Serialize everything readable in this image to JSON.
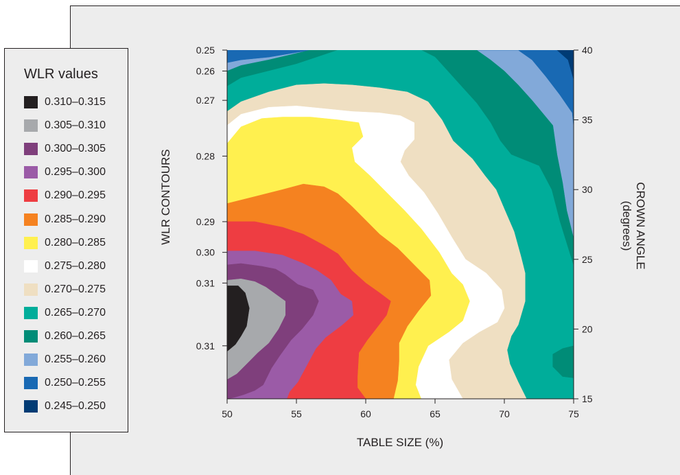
{
  "legend": {
    "title": "WLR values",
    "items": [
      {
        "label": "0.310–0.315",
        "color": "#231f20"
      },
      {
        "label": "0.305–0.310",
        "color": "#a7a9ac"
      },
      {
        "label": "0.300–0.305",
        "color": "#7f3f7c"
      },
      {
        "label": "0.295–0.300",
        "color": "#9b5ba7"
      },
      {
        "label": "0.290–0.295",
        "color": "#ee3d42"
      },
      {
        "label": "0.285–0.290",
        "color": "#f58220"
      },
      {
        "label": "0.280–0.285",
        "color": "#fff04f"
      },
      {
        "label": "0.275–0.280",
        "color": "#ffffff"
      },
      {
        "label": "0.270–0.275",
        "color": "#efdfc2"
      },
      {
        "label": "0.265–0.270",
        "color": "#00ad9a"
      },
      {
        "label": "0.260–0.265",
        "color": "#008c77"
      },
      {
        "label": "0.255–0.260",
        "color": "#82a9d9"
      },
      {
        "label": "0.250–0.255",
        "color": "#1969b3"
      },
      {
        "label": "0.245–0.250",
        "color": "#003b74"
      }
    ]
  },
  "chart_data": {
    "type": "heatmap",
    "subtype": "filled-contour",
    "xlabel": "TABLE SIZE (%)",
    "ylabel_left": "WLR  CONTOURS",
    "ylabel_right_line1": "CROWN ANGLE",
    "ylabel_right_line2": "(degrees)",
    "xlim": [
      50,
      75
    ],
    "ylim": [
      15,
      40
    ],
    "x_ticks": [
      50,
      55,
      60,
      65,
      70,
      75
    ],
    "x_tick_labels": [
      "50",
      "55",
      "60",
      "65",
      "70",
      "75"
    ],
    "y_right_ticks": [
      15,
      20,
      25,
      30,
      35,
      40
    ],
    "y_right_tick_labels": [
      "15",
      "20",
      "25",
      "30",
      "35",
      "40"
    ],
    "left_contour_labels": [
      {
        "label": "0.25",
        "crown_angle": 40
      },
      {
        "label": "0.26",
        "crown_angle": 38.5
      },
      {
        "label": "0.27",
        "crown_angle": 36.4
      },
      {
        "label": "0.28",
        "crown_angle": 32.4
      },
      {
        "label": "0.29",
        "crown_angle": 27.7
      },
      {
        "label": "0.30",
        "crown_angle": 25.5
      },
      {
        "label": "0.31",
        "crown_angle": 23.3
      },
      {
        "label": "0.31",
        "crown_angle": 18.8
      }
    ],
    "regions": [
      {
        "level": "0.255–0.260",
        "points": [
          [
            50,
            40
          ],
          [
            75,
            40
          ],
          [
            75,
            15
          ],
          [
            50,
            15
          ]
        ]
      },
      {
        "level": "0.250–0.255",
        "points": [
          [
            54,
            40
          ],
          [
            75,
            40
          ],
          [
            75,
            34.5
          ],
          [
            74.9,
            35.5
          ],
          [
            74,
            36.8
          ],
          [
            73,
            38.1
          ],
          [
            72,
            39.3
          ],
          [
            71,
            40
          ]
        ]
      },
      {
        "level": "0.245–0.250",
        "points": [
          [
            73.8,
            40
          ],
          [
            75,
            40
          ],
          [
            75,
            37.9
          ],
          [
            74.6,
            39.3
          ]
        ]
      },
      {
        "level": "0.250–0.255",
        "points": [
          [
            50,
            40
          ],
          [
            56,
            40
          ],
          [
            53,
            39.5
          ],
          [
            51,
            39.3
          ],
          [
            50,
            39.1
          ]
        ]
      },
      {
        "level": "0.260–0.265",
        "points": [
          [
            50,
            38.5
          ],
          [
            51,
            38.9
          ],
          [
            53,
            39.3
          ],
          [
            56,
            40
          ],
          [
            68,
            40
          ],
          [
            69,
            39.3
          ],
          [
            70,
            38.5
          ],
          [
            71,
            37.5
          ],
          [
            72,
            36.4
          ],
          [
            73.5,
            34.6
          ],
          [
            73.8,
            32.5
          ],
          [
            74.2,
            30.5
          ],
          [
            74.5,
            28.5
          ],
          [
            75,
            26.5
          ],
          [
            75,
            15
          ],
          [
            50,
            15
          ]
        ]
      },
      {
        "level": "0.265–0.270",
        "points": [
          [
            50,
            37.4
          ],
          [
            51,
            38
          ],
          [
            53,
            38.5
          ],
          [
            55,
            39
          ],
          [
            58,
            40
          ],
          [
            64,
            40
          ],
          [
            65,
            39.5
          ],
          [
            66,
            38.4
          ],
          [
            67,
            37.3
          ],
          [
            68,
            36.2
          ],
          [
            69,
            34.8
          ],
          [
            69.7,
            33.5
          ],
          [
            70.5,
            32.5
          ],
          [
            72.5,
            31.7
          ],
          [
            73.4,
            30
          ],
          [
            74,
            27.7
          ],
          [
            75,
            24.5
          ],
          [
            75,
            15
          ],
          [
            50,
            15
          ]
        ]
      },
      {
        "level": "0.260–0.265",
        "points": [
          [
            73.5,
            18.2
          ],
          [
            74.2,
            18.6
          ],
          [
            75,
            18.8
          ],
          [
            75,
            16.5
          ],
          [
            74.2,
            16.6
          ],
          [
            73.5,
            17.3
          ]
        ]
      },
      {
        "level": "0.270–0.275",
        "points": [
          [
            50,
            35.6
          ],
          [
            51,
            36.3
          ],
          [
            53,
            37
          ],
          [
            55,
            37.5
          ],
          [
            57,
            37.6
          ],
          [
            59,
            37.5
          ],
          [
            61,
            37.3
          ],
          [
            63,
            37
          ],
          [
            64.5,
            36.3
          ],
          [
            65.5,
            35
          ],
          [
            66.3,
            33.5
          ],
          [
            67.7,
            32.2
          ],
          [
            68.6,
            31
          ],
          [
            69.4,
            30
          ],
          [
            70,
            28.6
          ],
          [
            70.7,
            27
          ],
          [
            71.2,
            25.2
          ],
          [
            71.5,
            24
          ],
          [
            71.5,
            22
          ],
          [
            71,
            20.3
          ],
          [
            70.5,
            19.5
          ],
          [
            70.2,
            18.5
          ],
          [
            70.4,
            17.5
          ],
          [
            71,
            16.2
          ],
          [
            71.6,
            15
          ],
          [
            50,
            15
          ]
        ]
      },
      {
        "level": "0.275–0.280",
        "points": [
          [
            50,
            34.6
          ],
          [
            51,
            35.4
          ],
          [
            53,
            35.9
          ],
          [
            55,
            36
          ],
          [
            57,
            35.8
          ],
          [
            59,
            35.6
          ],
          [
            61,
            35.5
          ],
          [
            62.5,
            35.3
          ],
          [
            63.5,
            34.8
          ],
          [
            63.5,
            33.6
          ],
          [
            62.8,
            32.8
          ],
          [
            62.5,
            32
          ],
          [
            63.1,
            31
          ],
          [
            64.2,
            29.8
          ],
          [
            65.2,
            28.3
          ],
          [
            66.2,
            26.6
          ],
          [
            67.2,
            25
          ],
          [
            68.7,
            24
          ],
          [
            69.8,
            22.8
          ],
          [
            70,
            21.5
          ],
          [
            69.5,
            20.5
          ],
          [
            68.2,
            19.8
          ],
          [
            67,
            19
          ],
          [
            66,
            17.8
          ],
          [
            66.2,
            16.4
          ],
          [
            67,
            15
          ],
          [
            50,
            15
          ]
        ]
      },
      {
        "level": "0.280–0.285",
        "points": [
          [
            50,
            33.3
          ],
          [
            51,
            34.5
          ],
          [
            52.5,
            35.1
          ],
          [
            54,
            35.2
          ],
          [
            56,
            35.2
          ],
          [
            58,
            35
          ],
          [
            59.5,
            34.8
          ],
          [
            59.8,
            33.8
          ],
          [
            59,
            33
          ],
          [
            59.2,
            32
          ],
          [
            60.3,
            31
          ],
          [
            61.5,
            29.8
          ],
          [
            62.8,
            28.5
          ],
          [
            64,
            27.2
          ],
          [
            65.3,
            25.5
          ],
          [
            66.2,
            24
          ],
          [
            67,
            23.2
          ],
          [
            67.5,
            22
          ],
          [
            67,
            20.6
          ],
          [
            66,
            19.8
          ],
          [
            64.5,
            18.8
          ],
          [
            63.8,
            17.3
          ],
          [
            63.6,
            16
          ],
          [
            64,
            15
          ],
          [
            50,
            15
          ]
        ]
      },
      {
        "level": "0.285–0.290",
        "points": [
          [
            50,
            29
          ],
          [
            52,
            29.5
          ],
          [
            54,
            30
          ],
          [
            55.5,
            30.4
          ],
          [
            57,
            30.2
          ],
          [
            58,
            29.7
          ],
          [
            59,
            28.8
          ],
          [
            60,
            27.8
          ],
          [
            61,
            26.8
          ],
          [
            62.3,
            25.8
          ],
          [
            63.6,
            24.5
          ],
          [
            64.6,
            23.5
          ],
          [
            64.7,
            22.4
          ],
          [
            63.8,
            21.3
          ],
          [
            63,
            20.2
          ],
          [
            62.4,
            19
          ],
          [
            62.4,
            17.7
          ],
          [
            62.3,
            16.3
          ],
          [
            62,
            15
          ],
          [
            50,
            15
          ]
        ]
      },
      {
        "level": "0.290–0.295",
        "points": [
          [
            50,
            27.7
          ],
          [
            52,
            27.7
          ],
          [
            54,
            27.3
          ],
          [
            55.5,
            26.8
          ],
          [
            57,
            26
          ],
          [
            58,
            25.4
          ],
          [
            59,
            24.2
          ],
          [
            60,
            23.3
          ],
          [
            61,
            22.6
          ],
          [
            61.8,
            22
          ],
          [
            61.5,
            21
          ],
          [
            60.8,
            20.1
          ],
          [
            60.1,
            19.2
          ],
          [
            59.5,
            18.3
          ],
          [
            59.4,
            16.6
          ],
          [
            59.4,
            15.8
          ],
          [
            60,
            15
          ],
          [
            50,
            15
          ]
        ]
      },
      {
        "level": "0.295–0.300",
        "points": [
          [
            50,
            25.6
          ],
          [
            52,
            25.6
          ],
          [
            54,
            25.3
          ],
          [
            55.5,
            24.7
          ],
          [
            56.5,
            24.2
          ],
          [
            57.5,
            23.5
          ],
          [
            58.2,
            22.5
          ],
          [
            59,
            22
          ],
          [
            59.1,
            21
          ],
          [
            58.3,
            20.3
          ],
          [
            57.1,
            19.4
          ],
          [
            56.4,
            18.6
          ],
          [
            55.8,
            17.5
          ],
          [
            55.1,
            16.2
          ],
          [
            54.5,
            15.5
          ],
          [
            54.3,
            15
          ],
          [
            50,
            15
          ]
        ]
      },
      {
        "level": "0.300–0.305",
        "points": [
          [
            50,
            24.6
          ],
          [
            51,
            24.7
          ],
          [
            52.5,
            24.5
          ],
          [
            53.5,
            24.3
          ],
          [
            54.2,
            23.9
          ],
          [
            55.1,
            23.2
          ],
          [
            56.2,
            22.8
          ],
          [
            56.6,
            22
          ],
          [
            56.2,
            21
          ],
          [
            55.4,
            20
          ],
          [
            54.6,
            19.2
          ],
          [
            53.8,
            18.1
          ],
          [
            53.2,
            17.2
          ],
          [
            52.6,
            16
          ],
          [
            52,
            15.6
          ],
          [
            51.2,
            15.3
          ],
          [
            50.5,
            15.1
          ],
          [
            50,
            15
          ]
        ]
      },
      {
        "level": "0.305–0.310",
        "points": [
          [
            50,
            23.5
          ],
          [
            51,
            23.6
          ],
          [
            52,
            23.4
          ],
          [
            52.8,
            23
          ],
          [
            53.5,
            22.5
          ],
          [
            54.2,
            22
          ],
          [
            54.2,
            21
          ],
          [
            53.7,
            20
          ],
          [
            53,
            19
          ],
          [
            52.2,
            18.3
          ],
          [
            51.4,
            17.5
          ],
          [
            50.7,
            16.8
          ],
          [
            50,
            16.4
          ]
        ]
      },
      {
        "level": "0.310–0.315",
        "points": [
          [
            50,
            23.1
          ],
          [
            50.8,
            23.1
          ],
          [
            51.3,
            22.6
          ],
          [
            51.6,
            21.5
          ],
          [
            51.4,
            20.2
          ],
          [
            51,
            19.5
          ],
          [
            50.6,
            18.9
          ],
          [
            50,
            18.4
          ]
        ]
      }
    ]
  }
}
